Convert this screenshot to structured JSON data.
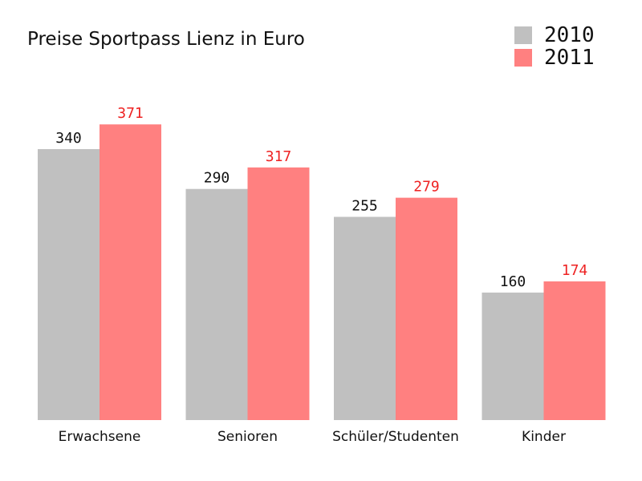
{
  "chart_data": {
    "type": "bar",
    "title": "Preise Sportpass Lienz in Euro",
    "categories": [
      "Erwachsene",
      "Senioren",
      "Schüler/Studenten",
      "Kinder"
    ],
    "series": [
      {
        "name": "2010",
        "values": [
          340,
          290,
          255,
          160
        ],
        "color": "#c0c0c0",
        "label_color": "#111111"
      },
      {
        "name": "2011",
        "values": [
          371,
          317,
          279,
          174
        ],
        "color": "#ff8080",
        "label_color": "#ee2222"
      }
    ],
    "xlabel": "",
    "ylabel": "",
    "ylim": [
      0,
      400
    ],
    "grid": false,
    "legend_position": "top-right",
    "data_labels": true
  }
}
